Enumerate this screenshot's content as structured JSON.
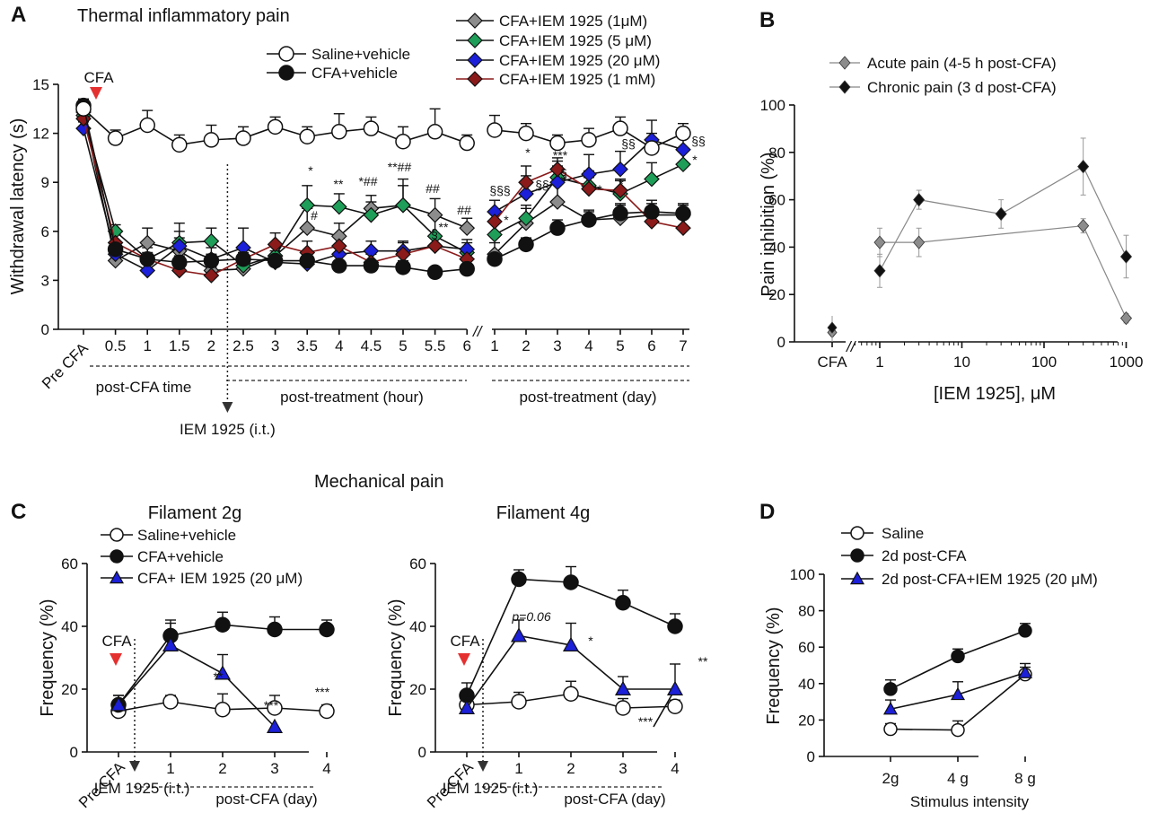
{
  "colors": {
    "black": "#111111",
    "saline": "#ffffff",
    "cfa_1uM": "#8c8c8c",
    "cfa_5uM": "#1e9e58",
    "cfa_20uM": "#1c20d8",
    "cfa_1mM": "#8b1a1a",
    "cfa_arrow": "#e53030",
    "panelB_acute": "#8c8c8c",
    "panelB_chronic": "#111111",
    "blue_triangle": "#1c20d8"
  },
  "panels": {
    "A": {
      "letter": "A",
      "title": "Thermal inflammatory pain"
    },
    "B": {
      "letter": "B"
    },
    "C": {
      "letter": "C"
    },
    "D": {
      "letter": "D"
    },
    "mechanical_title": "Mechanical pain"
  },
  "chart_data": [
    {
      "id": "A",
      "type": "line",
      "title": "Thermal inflammatory pain",
      "ylabel": "Withdrawal latency (s)",
      "ylim": [
        0,
        15
      ],
      "yticks": [
        "0",
        "3",
        "6",
        "9",
        "12",
        "15"
      ],
      "categories": [
        "Pre CFA",
        "0.5",
        "1",
        "1.5",
        "2",
        "2.5",
        "3",
        "3.5",
        "4",
        "4.5",
        "5",
        "5.5",
        "6",
        "1",
        "2",
        "3",
        "4",
        "5",
        "6",
        "7"
      ],
      "axis_break": "//",
      "group_labels": [
        "post-CFA time",
        "post-treatment (hour)",
        "post-treatment (day)"
      ],
      "cfa_marker": "CFA",
      "treatment_marker": "IEM 1925 (i.t.)",
      "series": [
        {
          "name": "Saline+vehicle",
          "marker": "circle-open",
          "values": [
            13.5,
            11.7,
            12.5,
            11.3,
            11.6,
            11.7,
            12.4,
            11.8,
            12.1,
            12.3,
            11.5,
            12.1,
            11.4,
            12.2,
            12.0,
            11.4,
            11.6,
            12.3,
            11.1,
            12.0
          ],
          "errors": [
            0.6,
            0.5,
            0.9,
            0.6,
            0.9,
            0.7,
            0.6,
            0.6,
            1.1,
            0.7,
            0.9,
            1.4,
            0.5,
            0.9,
            0.6,
            0.5,
            0.7,
            0.7,
            0.9,
            0.6
          ]
        },
        {
          "name": "CFA+vehicle",
          "marker": "circle-filled",
          "values": [
            13.7,
            4.9,
            4.3,
            4.1,
            4.2,
            4.3,
            4.2,
            4.2,
            3.9,
            3.9,
            3.8,
            3.5,
            3.7,
            4.3,
            5.2,
            6.2,
            6.7,
            7.1,
            7.2,
            7.1
          ],
          "errors": [
            0.4,
            0.4,
            0.4,
            0.4,
            0.4,
            0.4,
            0.4,
            0.4,
            0.3,
            0.3,
            0.4,
            0.3,
            0.3,
            0.4,
            0.4,
            0.5,
            0.5,
            0.6,
            0.7,
            0.5
          ]
        },
        {
          "name": "CFA+IEM 1925 (1μM)",
          "marker": "diamond-gray",
          "values": [
            13.3,
            4.2,
            5.3,
            4.8,
            3.6,
            3.7,
            4.5,
            6.2,
            5.7,
            7.4,
            7.6,
            7.0,
            6.2,
            4.6,
            6.5,
            7.8,
            6.7,
            6.8,
            7.0,
            7.0
          ],
          "errors": [
            0.5,
            0.5,
            0.9,
            0.8,
            0.8,
            0.6,
            0.8,
            1.2,
            0.8,
            0.8,
            1.2,
            1.0,
            0.6,
            0.7,
            0.9,
            1.1,
            0.6,
            0.8,
            0.7,
            0.7
          ]
        },
        {
          "name": "CFA+IEM 1925 (5 μM)",
          "marker": "diamond-green",
          "values": [
            13.1,
            6.0,
            4.3,
            5.3,
            5.4,
            3.9,
            4.5,
            7.6,
            7.5,
            7.0,
            7.6,
            5.7,
            4.7,
            5.8,
            6.8,
            9.3,
            8.8,
            8.3,
            9.2,
            10.1
          ],
          "errors": [
            0.5,
            0.4,
            0.9,
            1.2,
            0.8,
            0.7,
            0.7,
            1.2,
            0.8,
            0.8,
            1.6,
            1.2,
            0.6,
            0.7,
            0.8,
            1.0,
            0.9,
            0.9,
            1.0,
            0.8
          ]
        },
        {
          "name": "CFA+IEM 1925 (20 μM)",
          "marker": "diamond-blue",
          "values": [
            12.3,
            4.6,
            3.6,
            5.1,
            4.3,
            5.0,
            4.1,
            4.0,
            4.6,
            4.8,
            4.8,
            5.1,
            4.9,
            7.2,
            8.3,
            9.0,
            9.5,
            9.8,
            11.6,
            11.0
          ],
          "errors": [
            0.4,
            0.4,
            0.6,
            0.9,
            0.7,
            1.2,
            0.7,
            0.6,
            0.6,
            0.6,
            0.6,
            0.5,
            0.6,
            0.7,
            1.1,
            1.0,
            1.2,
            1.1,
            1.2,
            0.9
          ]
        },
        {
          "name": "CFA+IEM 1925 (1 mM)",
          "marker": "diamond-red",
          "values": [
            12.9,
            5.3,
            4.3,
            3.6,
            3.3,
            4.3,
            5.2,
            4.7,
            5.1,
            4.1,
            4.6,
            5.1,
            4.3,
            6.6,
            9.0,
            9.8,
            8.6,
            8.5,
            6.6,
            6.2
          ],
          "errors": [
            0.5,
            0.5,
            0.7,
            0.6,
            0.5,
            0.6,
            0.7,
            0.7,
            0.6,
            0.5,
            0.7,
            0.6,
            0.6,
            0.7,
            1.0,
            0.7,
            0.7,
            0.6,
            0.7,
            0.6
          ]
        }
      ],
      "annotations": [
        {
          "text": "*",
          "x": "3.5"
        },
        {
          "text": "#",
          "x": "3.5"
        },
        {
          "text": "**",
          "x": "4"
        },
        {
          "text": "*##",
          "x": "4.5"
        },
        {
          "text": "**##",
          "x": "5"
        },
        {
          "text": "##",
          "x": "5.5"
        },
        {
          "text": "§",
          "x": "5.5"
        },
        {
          "text": "**",
          "x": "5.5"
        },
        {
          "text": "##",
          "x": "6"
        },
        {
          "text": "§§§",
          "x": "1d"
        },
        {
          "text": "*",
          "x": "1d"
        },
        {
          "text": "*",
          "x": "2d"
        },
        {
          "text": "§§",
          "x": "2d"
        },
        {
          "text": "***",
          "x": "3d"
        },
        {
          "text": "§",
          "x": "3d"
        },
        {
          "text": "*",
          "x": "4d"
        },
        {
          "text": "*",
          "x": "5d"
        },
        {
          "text": "§§",
          "x": "5d"
        },
        {
          "text": "§§",
          "x": "7d"
        },
        {
          "text": "*",
          "x": "7d"
        }
      ]
    },
    {
      "id": "B",
      "type": "line",
      "xlabel": "[IEM 1925], μM",
      "ylabel": "Pain inhibition (%)",
      "xscale": "log",
      "ylim": [
        0,
        100
      ],
      "yticks": [
        "0",
        "20",
        "40",
        "60",
        "80",
        "100"
      ],
      "xticks": [
        "CFA",
        "1",
        "10",
        "100",
        "1000"
      ],
      "series": [
        {
          "name": "Acute pain (4-5 h post-CFA)",
          "x": [
            1,
            3,
            30,
            300,
            1000
          ],
          "values": [
            42,
            42,
            null,
            49,
            10
          ],
          "errors": [
            6,
            6,
            null,
            3,
            2
          ],
          "control": 4,
          "control_error": 4
        },
        {
          "name": "Chronic pain (3 d post-CFA)",
          "x": [
            1,
            3,
            30,
            300,
            1000
          ],
          "values": [
            30,
            60,
            54,
            74,
            36
          ],
          "errors": [
            7,
            4,
            6,
            12,
            9
          ],
          "control": 6,
          "control_error": 5
        }
      ]
    },
    {
      "id": "C1",
      "type": "line",
      "title": "Filament 2g",
      "ylabel": "Frequency (%)",
      "ylim": [
        0,
        60
      ],
      "yticks": [
        "0",
        "20",
        "40",
        "60"
      ],
      "categories": [
        "Pre CFA",
        "1",
        "2",
        "3",
        "4"
      ],
      "group_label": "post-CFA (day)",
      "cfa_marker": "CFA",
      "treatment_marker": "IEM 1925 (i.t.)",
      "series": [
        {
          "name": "Saline+vehicle",
          "values": [
            13,
            16,
            13.5,
            14,
            13
          ],
          "errors": [
            2,
            2,
            5,
            4,
            2
          ]
        },
        {
          "name": "CFA+vehicle",
          "values": [
            15,
            37,
            40.5,
            39,
            39
          ],
          "errors": [
            3,
            5,
            4,
            4,
            3
          ]
        },
        {
          "name": "CFA+ IEM 1925 (20 μM)",
          "values": [
            15,
            34,
            25,
            8,
            null
          ],
          "errors": [
            3,
            7,
            6,
            0,
            null
          ]
        }
      ],
      "annotations": [
        {
          "text": "**",
          "x": "2"
        },
        {
          "text": "***",
          "x": "3"
        },
        {
          "text": "***",
          "x": "4"
        }
      ]
    },
    {
      "id": "C2",
      "type": "line",
      "title": "Filament 4g",
      "ylabel": "Frequency (%)",
      "ylim": [
        0,
        60
      ],
      "yticks": [
        "0",
        "20",
        "40",
        "60"
      ],
      "categories": [
        "Pre CFA",
        "1",
        "2",
        "3",
        "4"
      ],
      "group_label": "post-CFA (day)",
      "cfa_marker": "CFA",
      "treatment_marker": "IEM 1925 (i.t.)",
      "series": [
        {
          "name": "Saline+vehicle",
          "values": [
            15,
            16,
            18.5,
            14,
            14.5
          ],
          "errors": [
            2,
            3,
            4,
            3,
            2
          ]
        },
        {
          "name": "CFA+vehicle",
          "values": [
            18,
            55,
            54,
            47.5,
            40
          ],
          "errors": [
            4,
            3,
            5,
            4,
            4
          ]
        },
        {
          "name": "CFA+ IEM 1925 (20 μM)",
          "values": [
            14,
            37,
            34,
            20,
            20
          ],
          "errors": [
            2,
            5,
            7,
            4,
            8
          ]
        }
      ],
      "annotations": [
        {
          "text": "p=0.06",
          "x": "1"
        },
        {
          "text": "*",
          "x": "2"
        },
        {
          "text": "***",
          "x": "3"
        },
        {
          "text": "**",
          "x": "4"
        }
      ]
    },
    {
      "id": "D",
      "type": "line",
      "xlabel": "Stimulus intensity",
      "ylabel": "Frequency (%)",
      "ylim": [
        0,
        100
      ],
      "yticks": [
        "0",
        "20",
        "40",
        "60",
        "80",
        "100"
      ],
      "categories": [
        "2g",
        "4 g",
        "8 g"
      ],
      "series": [
        {
          "name": "Saline",
          "values": [
            15,
            14.5,
            45
          ],
          "errors": [
            3,
            5,
            4
          ]
        },
        {
          "name": "2d post-CFA",
          "values": [
            37,
            55,
            69
          ],
          "errors": [
            5,
            4,
            4
          ]
        },
        {
          "name": "2d post-CFA+IEM 1925 (20 μM)",
          "values": [
            26,
            34,
            46
          ],
          "errors": [
            5,
            7,
            5
          ]
        }
      ]
    }
  ]
}
